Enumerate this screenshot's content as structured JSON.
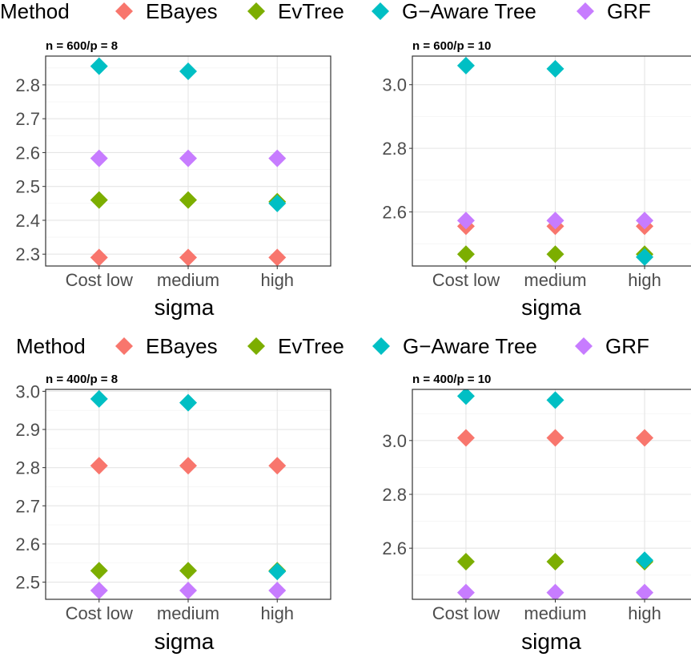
{
  "legend": {
    "title": "Method",
    "entries": [
      {
        "name": "EBayes",
        "color": "#F8766D"
      },
      {
        "name": "EvTree",
        "color": "#7CAE00"
      },
      {
        "name": "G−Aware Tree",
        "color": "#00BFC4"
      },
      {
        "name": "GRF",
        "color": "#C77CFF"
      }
    ]
  },
  "chart_data": [
    {
      "type": "scatter",
      "title": "n = 600/p = 8",
      "xlabel": "sigma",
      "categories": [
        "Cost low",
        "medium",
        "high"
      ],
      "ylim": [
        2.265,
        2.885
      ],
      "yticks": [
        2.3,
        2.4,
        2.5,
        2.6,
        2.7,
        2.8
      ],
      "ytick_labels": [
        "2.3",
        "2.4",
        "2.5",
        "2.6",
        "2.7",
        "2.8"
      ],
      "series": [
        {
          "name": "EBayes",
          "values": [
            2.29,
            2.29,
            2.29
          ]
        },
        {
          "name": "EvTree",
          "values": [
            2.46,
            2.46,
            2.455
          ]
        },
        {
          "name": "G−Aware Tree",
          "values": [
            2.855,
            2.84,
            2.45
          ]
        },
        {
          "name": "GRF",
          "values": [
            2.583,
            2.583,
            2.583
          ]
        }
      ]
    },
    {
      "type": "scatter",
      "title": "n = 600/p = 10",
      "xlabel": "sigma",
      "categories": [
        "Cost low",
        "medium",
        "high"
      ],
      "ylim": [
        2.43,
        3.09
      ],
      "yticks": [
        2.6,
        2.8,
        3.0
      ],
      "ytick_labels": [
        "2.6",
        "2.8",
        "3.0"
      ],
      "series": [
        {
          "name": "EBayes",
          "values": [
            2.555,
            2.555,
            2.555
          ]
        },
        {
          "name": "EvTree",
          "values": [
            2.467,
            2.467,
            2.467
          ]
        },
        {
          "name": "G−Aware Tree",
          "values": [
            3.06,
            3.05,
            2.458
          ]
        },
        {
          "name": "GRF",
          "values": [
            2.573,
            2.573,
            2.573
          ]
        }
      ]
    },
    {
      "type": "scatter",
      "title": "n = 400/p = 8",
      "xlabel": "sigma",
      "categories": [
        "Cost low",
        "medium",
        "high"
      ],
      "ylim": [
        2.455,
        3.005
      ],
      "yticks": [
        2.5,
        2.6,
        2.7,
        2.8,
        2.9,
        3.0
      ],
      "ytick_labels": [
        "2.5",
        "2.6",
        "2.7",
        "2.8",
        "2.9",
        "3.0"
      ],
      "series": [
        {
          "name": "EBayes",
          "values": [
            2.805,
            2.805,
            2.805
          ]
        },
        {
          "name": "EvTree",
          "values": [
            2.53,
            2.53,
            2.53
          ]
        },
        {
          "name": "G−Aware Tree",
          "values": [
            2.98,
            2.97,
            2.528
          ]
        },
        {
          "name": "GRF",
          "values": [
            2.478,
            2.478,
            2.478
          ]
        }
      ]
    },
    {
      "type": "scatter",
      "title": "n = 400/p = 10",
      "xlabel": "sigma",
      "categories": [
        "Cost low",
        "medium",
        "high"
      ],
      "ylim": [
        2.41,
        3.19
      ],
      "yticks": [
        2.6,
        2.8,
        3.0
      ],
      "ytick_labels": [
        "2.6",
        "2.8",
        "3.0"
      ],
      "series": [
        {
          "name": "EBayes",
          "values": [
            3.01,
            3.01,
            3.01
          ]
        },
        {
          "name": "EvTree",
          "values": [
            2.55,
            2.55,
            2.55
          ]
        },
        {
          "name": "G−Aware Tree",
          "values": [
            3.165,
            3.15,
            2.555
          ]
        },
        {
          "name": "GRF",
          "values": [
            2.435,
            2.435,
            2.435
          ]
        }
      ]
    }
  ]
}
